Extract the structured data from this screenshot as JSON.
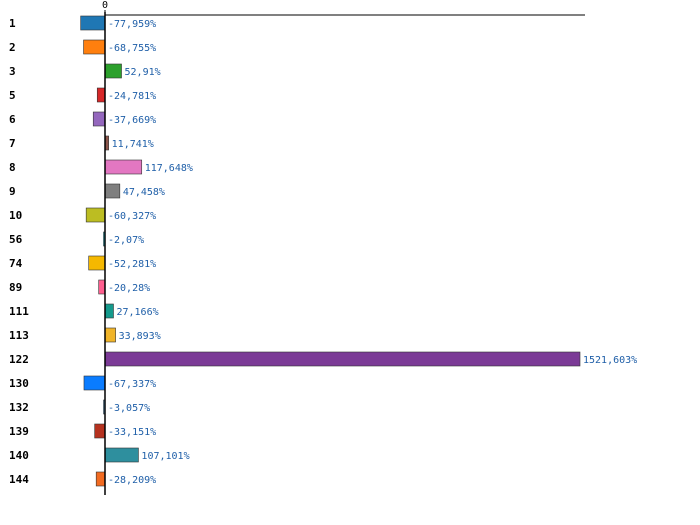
{
  "chart_data": {
    "type": "bar",
    "orientation": "horizontal",
    "title": "",
    "xlabel": "",
    "ylabel": "",
    "grid": false,
    "legend": "none",
    "xlim": [
      -100,
      1521.603
    ],
    "x_ticks": [
      {
        "value": 0,
        "label": "0"
      }
    ],
    "categories": [
      "1",
      "2",
      "3",
      "5",
      "6",
      "7",
      "8",
      "9",
      "10",
      "56",
      "74",
      "89",
      "111",
      "113",
      "122",
      "130",
      "132",
      "139",
      "140",
      "144"
    ],
    "values": [
      -77.959,
      -68.755,
      52.91,
      -24.781,
      -37.669,
      11.741,
      117.648,
      47.458,
      -60.327,
      -2.07,
      -52.281,
      -20.28,
      27.166,
      33.893,
      1521.603,
      -67.337,
      -3.057,
      -33.151,
      107.101,
      -28.209
    ],
    "labels": [
      "-77,959%",
      "-68,755%",
      "52,91%",
      "-24,781%",
      "-37,669%",
      "11,741%",
      "117,648%",
      "47,458%",
      "-60,327%",
      "-2,07%",
      "-52,281%",
      "-20,28%",
      "27,166%",
      "33,893%",
      "1521,603%",
      "-67,337%",
      "-3,057%",
      "-33,151%",
      "107,101%",
      "-28,209%"
    ],
    "colors": [
      "#1f77b4",
      "#ff7f0e",
      "#2ca02c",
      "#d62728",
      "#9467bd",
      "#8c564b",
      "#e377c2",
      "#7f7f7f",
      "#bcbd22",
      "#17becf",
      "#f5b800",
      "#ff5f8f",
      "#159a8c",
      "#f0b429",
      "#7b3a96",
      "#0a7cff",
      "#5aa0d0",
      "#b5321f",
      "#2e8f9e",
      "#f26b21"
    ],
    "label_color": "#1f5fa8"
  }
}
